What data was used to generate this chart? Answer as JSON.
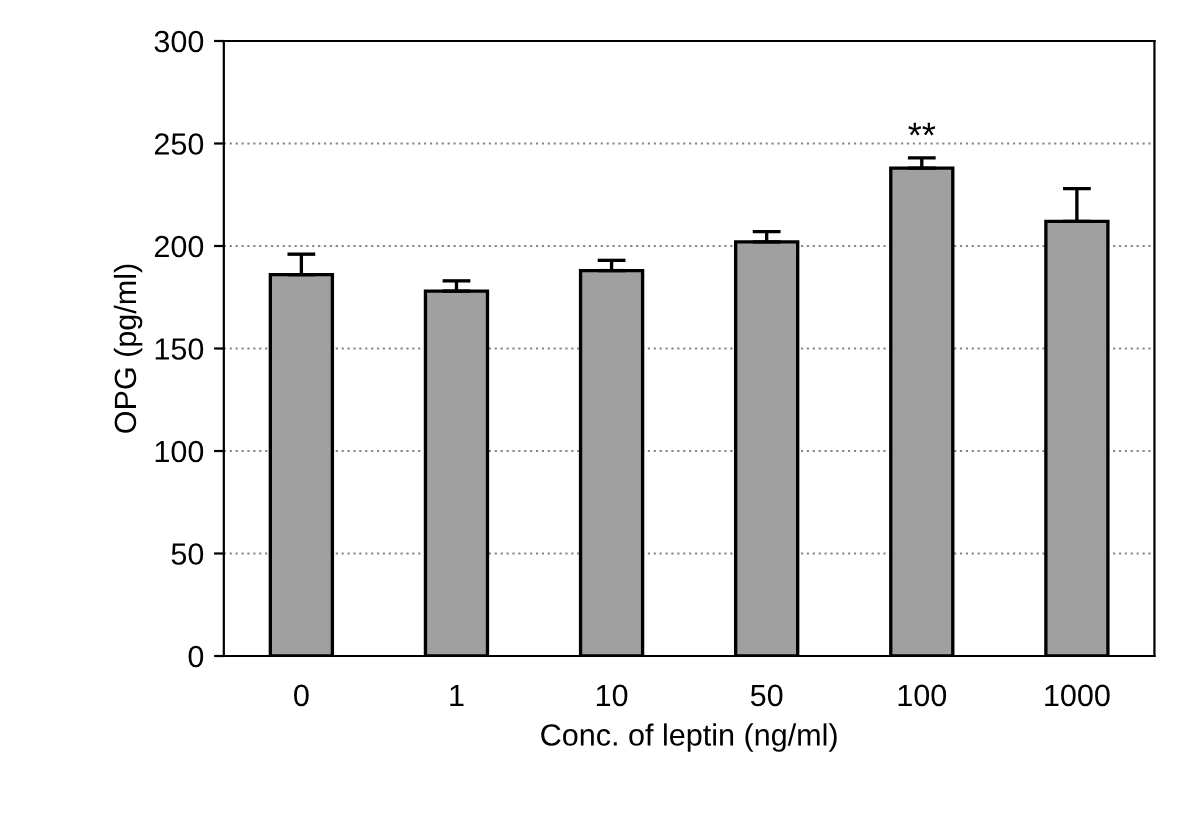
{
  "chart_data": {
    "type": "bar",
    "xlabel": "Conc. of leptin (ng/ml)",
    "ylabel": "OPG (pg/ml)",
    "categories": [
      "0",
      "1",
      "10",
      "50",
      "100",
      "1000"
    ],
    "values": [
      186,
      178,
      188,
      202,
      238,
      212
    ],
    "errors": [
      [
        186,
        196
      ],
      [
        178,
        183
      ],
      [
        188,
        193
      ],
      [
        202,
        207
      ],
      [
        238,
        243
      ],
      [
        212,
        228
      ]
    ],
    "color": "#a0a0a0",
    "ylim": [
      0,
      300
    ],
    "yticks": [
      0,
      50,
      100,
      150,
      200,
      250,
      300
    ],
    "grid": "y",
    "annotations": [
      {
        "text": "**",
        "x": "100",
        "y": 243
      }
    ]
  }
}
